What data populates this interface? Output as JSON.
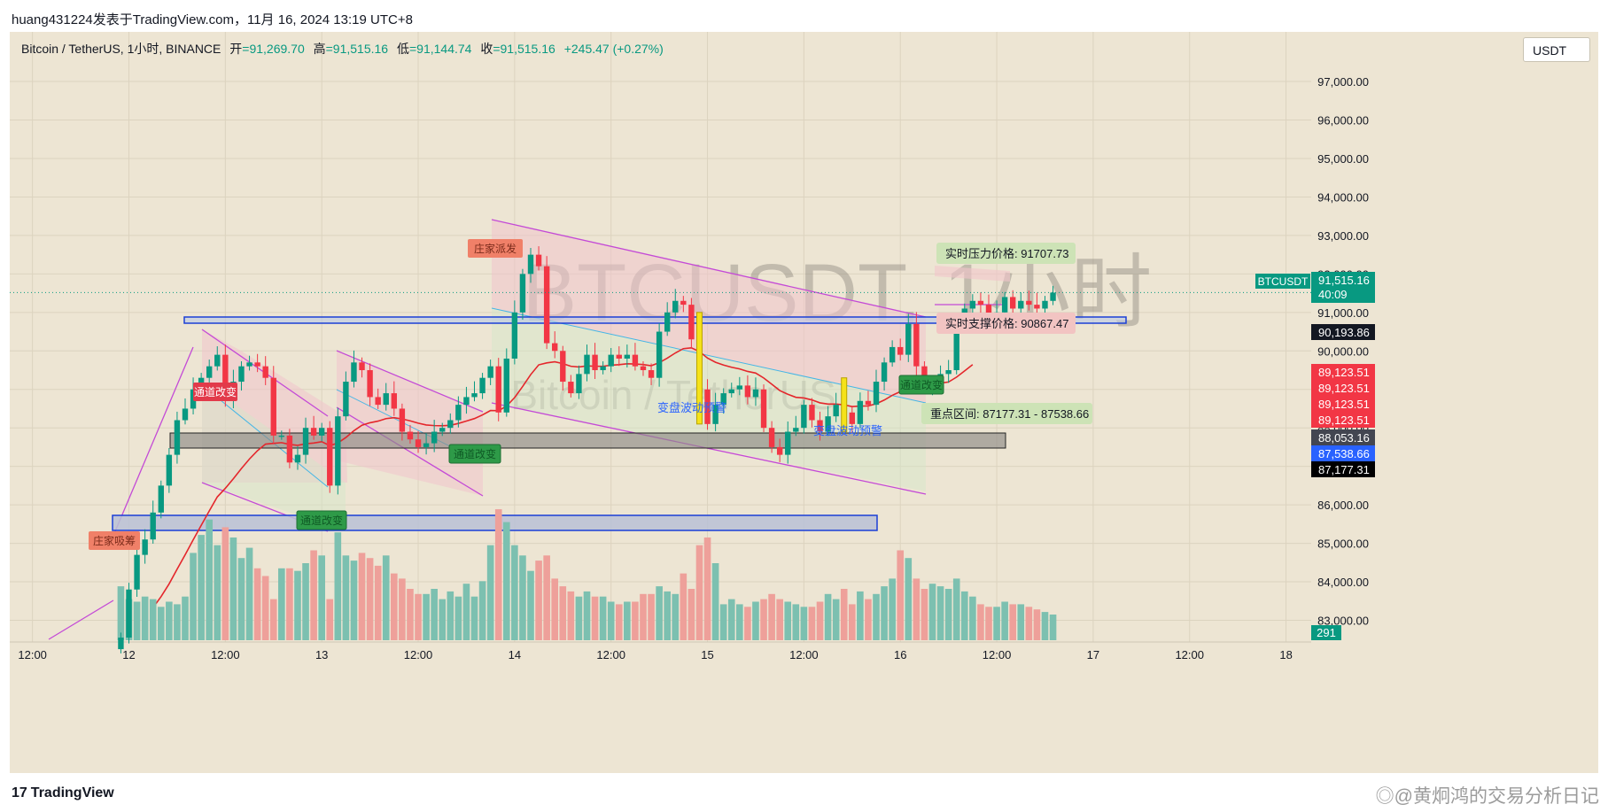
{
  "header": {
    "title": "huang431224发表于TradingView.com，11月 16, 2024 13:19 UTC+8"
  },
  "legend": {
    "symbol": "Bitcoin / TetherUS, 1小时, BINANCE",
    "open_label": "开",
    "open": "=91,269.70",
    "high_label": "高",
    "high": "=91,515.16",
    "low_label": "低",
    "low": "=91,144.74",
    "close_label": "收",
    "close": "=91,515.16",
    "change": "+245.47 (+0.27%)"
  },
  "currency_button": "USDT",
  "footer": {
    "brand": "TradingView",
    "watermark": "◎@黄炯鸿的交易分析日记"
  },
  "chart_data": {
    "type": "candlestick",
    "symbol": "BTCUSDT",
    "timeframe": "1小时",
    "watermark_big": "BTCUSDT, 1小时",
    "watermark_small": "Bitcoin / TetherUS",
    "ylim": [
      82300,
      97700
    ],
    "y_ticks": [
      83000,
      84000,
      85000,
      86000,
      87000,
      88000,
      89000,
      90000,
      91000,
      92000,
      93000,
      94000,
      95000,
      96000,
      97000
    ],
    "y_tick_labels": [
      "83,000.00",
      "84,000.00",
      "85,000.00",
      "86,000.00",
      "87,000.00",
      "88,000.00",
      "89,000.00",
      "90,000.00",
      "91,000.00",
      "92,000.00",
      "93,000.00",
      "94,000.00",
      "95,000.00",
      "96,000.00",
      "97,000.00"
    ],
    "x_ticks": [
      {
        "label": "12:00",
        "bar": -12
      },
      {
        "label": "12",
        "bar": 0
      },
      {
        "label": "12:00",
        "bar": 12
      },
      {
        "label": "13",
        "bar": 24
      },
      {
        "label": "12:00",
        "bar": 36
      },
      {
        "label": "14",
        "bar": 48
      },
      {
        "label": "12:00",
        "bar": 60
      },
      {
        "label": "15",
        "bar": 72
      },
      {
        "label": "12:00",
        "bar": 84
      },
      {
        "label": "16",
        "bar": 96
      },
      {
        "label": "12:00",
        "bar": 108
      },
      {
        "label": "17",
        "bar": 120
      },
      {
        "label": "12:00",
        "bar": 132
      },
      {
        "label": "18",
        "bar": 144
      }
    ],
    "first_bar_index": -1,
    "closes": [
      82550,
      83800,
      84700,
      85100,
      85800,
      86500,
      87300,
      88200,
      88500,
      89000,
      89300,
      89600,
      89900,
      88700,
      89200,
      89600,
      89700,
      89600,
      89300,
      87800,
      87800,
      87100,
      87300,
      88000,
      87800,
      88000,
      86500,
      88300,
      89200,
      89700,
      89500,
      88800,
      88600,
      88900,
      88500,
      87900,
      87700,
      87500,
      87600,
      87900,
      88000,
      88200,
      88600,
      88800,
      88900,
      89300,
      89600,
      88400,
      89800,
      91000,
      92000,
      92500,
      92200,
      90200,
      90000,
      89200,
      88900,
      89400,
      89900,
      89500,
      89600,
      89900,
      89800,
      89900,
      89600,
      89500,
      89300,
      90500,
      91000,
      91300,
      91200,
      90300,
      89000,
      88100,
      88600,
      88900,
      89000,
      89100,
      88800,
      89000,
      88000,
      87500,
      87300,
      87900,
      88000,
      88600,
      88200,
      87900,
      88300,
      88600,
      88400,
      88100,
      88700,
      88600,
      89200,
      89700,
      90100,
      89900,
      90700,
      89600,
      89000,
      89200,
      89400,
      89500,
      90600,
      91100,
      91300,
      91200,
      90900,
      91000,
      91400,
      91100,
      91300,
      91200,
      91100,
      91300,
      91515
    ],
    "volumes": [
      210,
      160,
      150,
      170,
      160,
      130,
      150,
      140,
      170,
      340,
      410,
      470,
      370,
      440,
      400,
      320,
      360,
      280,
      250,
      160,
      280,
      280,
      270,
      300,
      350,
      330,
      160,
      420,
      330,
      310,
      340,
      320,
      290,
      330,
      260,
      240,
      200,
      180,
      180,
      200,
      160,
      190,
      170,
      220,
      170,
      230,
      370,
      510,
      460,
      370,
      330,
      270,
      310,
      330,
      240,
      210,
      190,
      170,
      190,
      170,
      170,
      150,
      140,
      150,
      150,
      180,
      180,
      210,
      190,
      180,
      260,
      200,
      370,
      400,
      300,
      140,
      160,
      140,
      130,
      150,
      160,
      180,
      160,
      150,
      140,
      130,
      130,
      150,
      180,
      160,
      200,
      140,
      190,
      160,
      180,
      210,
      240,
      350,
      320,
      240,
      200,
      220,
      210,
      200,
      240,
      190,
      170,
      140,
      130,
      130,
      150,
      140,
      140,
      130,
      120,
      110,
      100
    ],
    "volume_badge": "291",
    "last_price": {
      "label": "BTCUSDT",
      "value": "91,515.16",
      "countdown": "40:09"
    },
    "price_labels": [
      {
        "value": 90193.86,
        "text": "90,193.86",
        "color": "#131722"
      },
      {
        "value": 89123.51,
        "text": "89,123.51",
        "color": "#f23645"
      },
      {
        "value": 88053.16,
        "text": "88,053.16",
        "color": "#434651"
      },
      {
        "value": 87538.66,
        "text": "87,538.66",
        "color": "#2962ff"
      },
      {
        "value": 87177.31,
        "text": "87,177.31",
        "color": "#000000"
      }
    ],
    "annotations": [
      {
        "text": "实时压力价格: 91707.73",
        "kind": "callout",
        "color": "#cde3b6"
      },
      {
        "text": "实时支撑价格: 90867.47",
        "kind": "callout",
        "color": "#f2c4c2"
      },
      {
        "text": "重点区间: 87177.31 - 87538.66",
        "kind": "callout",
        "color": "#cde3b6"
      },
      {
        "text": "庄家吸筹",
        "kind": "tag",
        "color": "#f08068"
      },
      {
        "text": "庄家派发",
        "kind": "tag",
        "color": "#f08068"
      },
      {
        "text": "通道改变",
        "kind": "tag",
        "color": "#e23a4a"
      },
      {
        "text": "通道改变",
        "kind": "tag",
        "color": "#2e9a48"
      },
      {
        "text": "通道改变",
        "kind": "tag",
        "color": "#2e9a48"
      },
      {
        "text": "通道改变",
        "kind": "tag",
        "color": "#2e9a48"
      },
      {
        "text": "变盘波动预警",
        "kind": "label",
        "color": "#2962ff"
      },
      {
        "text": "变盘波动预警",
        "kind": "label",
        "color": "#2962ff"
      }
    ],
    "colors": {
      "up": "#089981",
      "down": "#f23645",
      "vol_up": "#7cc0b0",
      "vol_down": "#eea09a",
      "bg": "#ede5d3",
      "grid": "#dcd3bf"
    }
  }
}
